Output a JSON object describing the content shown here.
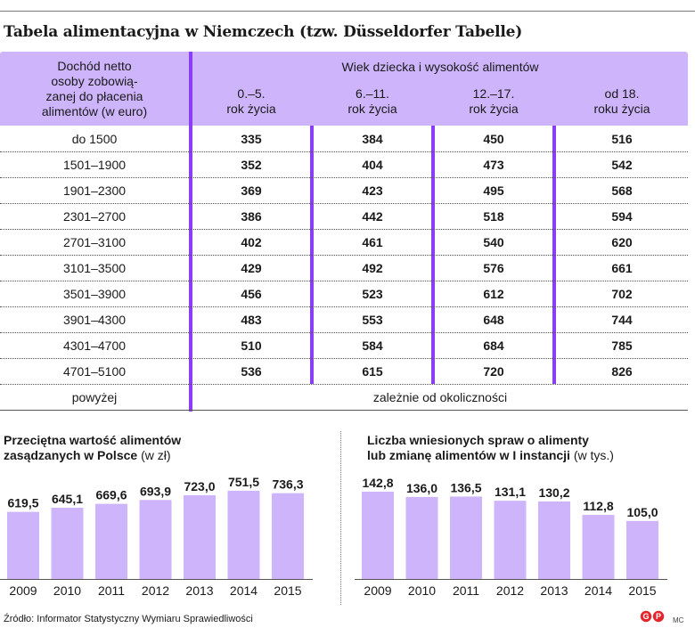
{
  "title": "Tabela alimentacyjna w Niemczech (tzw. Düsseldorfer Tabelle)",
  "table": {
    "header_left_lines": [
      "Dochód netto",
      "osoby zobowią-",
      "zanej do płacenia",
      "alimentów (w euro)"
    ],
    "header_group": "Wiek dziecka i wysokość alimentów",
    "columns": [
      {
        "line1": "0.–5.",
        "line2": "rok życia"
      },
      {
        "line1": "6.–11.",
        "line2": "rok życia"
      },
      {
        "line1": "12.–17.",
        "line2": "rok życia"
      },
      {
        "line1": "od 18.",
        "line2": "roku życia"
      }
    ],
    "rows": [
      {
        "label": "do 1500",
        "values": [
          "335",
          "384",
          "450",
          "516"
        ]
      },
      {
        "label": "1501–1900",
        "values": [
          "352",
          "404",
          "473",
          "542"
        ]
      },
      {
        "label": "1901–2300",
        "values": [
          "369",
          "423",
          "495",
          "568"
        ]
      },
      {
        "label": "2301–2700",
        "values": [
          "386",
          "442",
          "518",
          "594"
        ]
      },
      {
        "label": "2701–3100",
        "values": [
          "402",
          "461",
          "540",
          "620"
        ]
      },
      {
        "label": "3101–3500",
        "values": [
          "429",
          "492",
          "576",
          "661"
        ]
      },
      {
        "label": "3501–3900",
        "values": [
          "456",
          "523",
          "612",
          "702"
        ]
      },
      {
        "label": "3901–4300",
        "values": [
          "483",
          "553",
          "648",
          "744"
        ]
      },
      {
        "label": "4301–4700",
        "values": [
          "510",
          "584",
          "684",
          "785"
        ]
      },
      {
        "label": "4701–5100",
        "values": [
          "536",
          "615",
          "720",
          "826"
        ]
      }
    ],
    "last_row": {
      "label": "powyżej",
      "text": "zależnie od okoliczności"
    }
  },
  "chart_data": [
    {
      "type": "bar",
      "title_line1": "Przeciętna wartość alimentów",
      "title_line2": "zasądzanych w Polsce",
      "unit": "(w zł)",
      "categories": [
        "2009",
        "2010",
        "2011",
        "2012",
        "2013",
        "2014",
        "2015"
      ],
      "values": [
        619.5,
        645.1,
        669.6,
        693.9,
        723.0,
        751.5,
        736.3
      ],
      "labels": [
        "619,5",
        "645,1",
        "669,6",
        "693,9",
        "723,0",
        "751,5",
        "736,3"
      ],
      "bar_color": "#cdb4fb"
    },
    {
      "type": "bar",
      "title_line1": "Liczba wniesionych spraw o alimenty",
      "title_line2": "lub zmianę alimentów w I instancji",
      "unit": "(w tys.)",
      "categories": [
        "2009",
        "2010",
        "2011",
        "2012",
        "2013",
        "2014",
        "2015"
      ],
      "values": [
        142.8,
        136.0,
        136.5,
        131.1,
        130.2,
        112.8,
        105.0
      ],
      "labels": [
        "142,8",
        "136,0",
        "136,5",
        "131,1",
        "130,2",
        "112,8",
        "105,0"
      ],
      "bar_color": "#cdb4fb"
    }
  ],
  "source": "Źródło: Informator Statystyczny Wymiaru Sprawiedliwości",
  "credit": "MC",
  "colors": {
    "accent": "#8a3ff6",
    "header_fill": "#cdb4fb",
    "logo": "#e3262e"
  }
}
